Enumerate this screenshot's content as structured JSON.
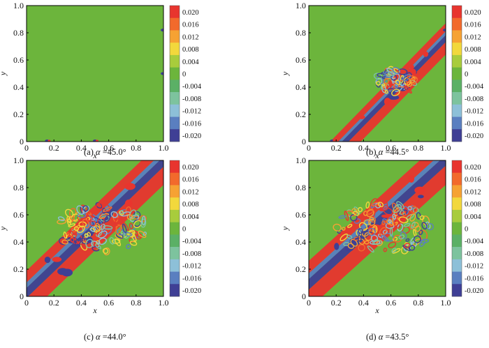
{
  "chart_data": [
    {
      "type": "heatmap",
      "panel_label": "(a)",
      "caption_var": "α",
      "caption_value": "=45.0°",
      "alpha_deg": 45.0,
      "xlabel": "x",
      "ylabel": "y",
      "xlim": [
        0,
        1
      ],
      "ylim": [
        0,
        1
      ],
      "x_ticks": [
        "0",
        "0.2",
        "0.4",
        "0.6",
        "0.8",
        "1.0"
      ],
      "y_ticks": [
        "0",
        "0.2",
        "0.4",
        "0.6",
        "0.8",
        "1.0"
      ],
      "colorbar_levels": [
        "0.020",
        "0.016",
        "0.012",
        "0.008",
        "0.004",
        "0",
        "-0.004",
        "-0.008",
        "-0.012",
        "-0.016",
        "-0.020"
      ],
      "features": {
        "background_value": 0,
        "shear_band": null,
        "noise_spots": [
          [
            0.15,
            0.005
          ],
          [
            0.5,
            0.005
          ],
          [
            0.995,
            0.82
          ],
          [
            0.995,
            0.5
          ]
        ]
      }
    },
    {
      "type": "heatmap",
      "panel_label": "(b)",
      "caption_var": "α",
      "caption_value": "=44.5°",
      "alpha_deg": 44.5,
      "xlabel": "x",
      "ylabel": "y",
      "xlim": [
        0,
        1
      ],
      "ylim": [
        0,
        1
      ],
      "x_ticks": [
        "0",
        "0.2",
        "0.4",
        "0.6",
        "0.8",
        "1.0"
      ],
      "y_ticks": [
        "0",
        "0.2",
        "0.4",
        "0.6",
        "0.8",
        "1.0"
      ],
      "colorbar_levels": [
        "0.020",
        "0.016",
        "0.012",
        "0.008",
        "0.004",
        "0",
        "-0.004",
        "-0.008",
        "-0.012",
        "-0.016",
        "-0.020"
      ],
      "features": {
        "background_value": 0,
        "shear_band": {
          "x_start": 0.38,
          "x_end": 1.0,
          "y_end": 0.64,
          "width": 0.16
        },
        "vortex_region": {
          "center": [
            0.62,
            0.42
          ],
          "radius": 0.14
        },
        "noise_spots": [
          [
            0.17,
            0.005
          ],
          [
            0.995,
            0.82
          ]
        ]
      }
    },
    {
      "type": "heatmap",
      "panel_label": "(c)",
      "caption_var": "α",
      "caption_value": "=44.0°",
      "alpha_deg": 44.0,
      "xlabel": "x",
      "ylabel": "y",
      "xlim": [
        0,
        1
      ],
      "ylim": [
        0,
        1
      ],
      "x_ticks": [
        "0",
        "0.2",
        "0.4",
        "0.6",
        "0.8",
        "1.0"
      ],
      "y_ticks": [
        "0",
        "0.2",
        "0.4",
        "0.6",
        "0.8",
        "1.0"
      ],
      "colorbar_levels": [
        "0.020",
        "0.016",
        "0.012",
        "0.008",
        "0.004",
        "0",
        "-0.004",
        "-0.008",
        "-0.012",
        "-0.016",
        "-0.020"
      ],
      "features": {
        "background_value": 0,
        "shear_band": {
          "x_start": 0.15,
          "x_end": 1.0,
          "y_end": 0.82,
          "width": 0.24
        },
        "vortex_region": {
          "center": [
            0.55,
            0.45
          ],
          "radius": 0.3
        }
      }
    },
    {
      "type": "heatmap",
      "panel_label": "(d)",
      "caption_var": "α",
      "caption_value": "=43.5°",
      "alpha_deg": 43.5,
      "xlabel": "x",
      "ylabel": "y",
      "xlim": [
        0,
        1
      ],
      "ylim": [
        0,
        1
      ],
      "x_ticks": [
        "0",
        "0.2",
        "0.4",
        "0.6",
        "0.8",
        "1.0"
      ],
      "y_ticks": [
        "0",
        "0.2",
        "0.4",
        "0.6",
        "0.8",
        "1.0"
      ],
      "colorbar_levels": [
        "0.020",
        "0.016",
        "0.012",
        "0.008",
        "0.004",
        "0",
        "-0.004",
        "-0.008",
        "-0.012",
        "-0.016",
        "-0.020"
      ],
      "features": {
        "background_value": 0,
        "shear_band": {
          "x_start": 0.1,
          "x_end": 1.0,
          "y_end": 0.82,
          "width": 0.26
        },
        "vortex_region": {
          "center": [
            0.55,
            0.45
          ],
          "radius": 0.32
        }
      }
    }
  ],
  "colors": {
    "levels": [
      "#e8352e",
      "#f26a2c",
      "#f6a233",
      "#f2d83c",
      "#a8cc3c",
      "#6cb53c",
      "#5bb066",
      "#7dc39e",
      "#8dc0d8",
      "#5a7fc0",
      "#3f3f95"
    ],
    "background": "#6cb53c",
    "axis": "#000000"
  }
}
